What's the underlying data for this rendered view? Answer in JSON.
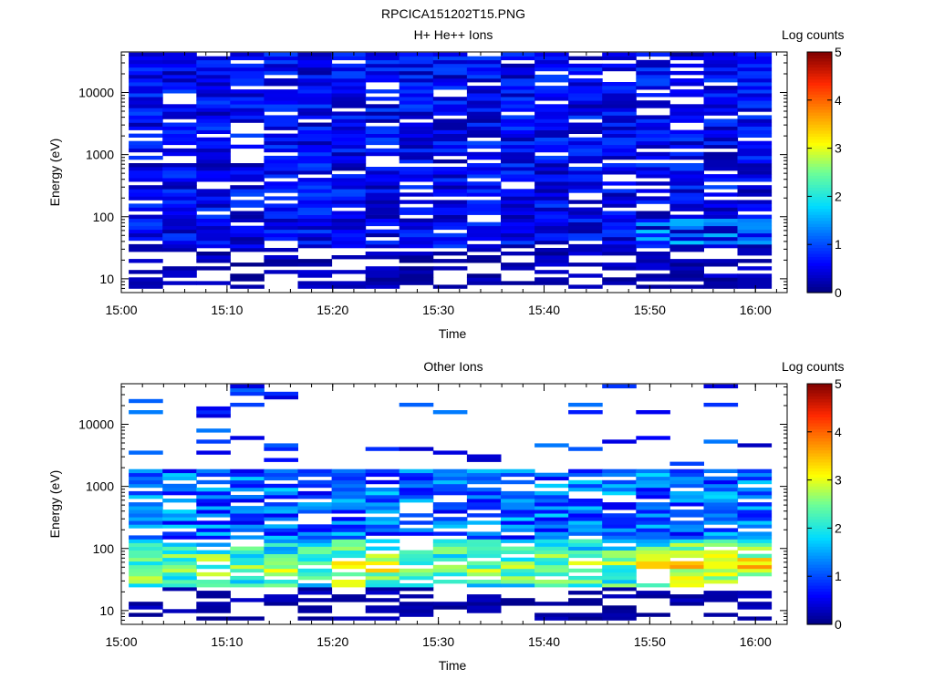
{
  "page_title": "RPCICA151202T15.PNG",
  "chart_data": [
    {
      "type": "heatmap",
      "title": "H+ He++ Ions",
      "xlabel": "Time",
      "ylabel": "Energy (eV)",
      "y_scale": "log",
      "ylim": [
        6,
        45000
      ],
      "xlim": [
        "15:00",
        "16:03"
      ],
      "x_ticks": [
        "15:00",
        "15:10",
        "15:20",
        "15:30",
        "15:40",
        "15:50",
        "16:00"
      ],
      "y_ticks": [
        "10",
        "100",
        "1000",
        "10000"
      ],
      "colorbar": {
        "label": "Log counts",
        "range": [
          0,
          5
        ],
        "ticks": [
          "0",
          "1",
          "2",
          "3",
          "4",
          "5"
        ]
      },
      "time_bins": [
        "15:00.7-15:04.0",
        "15:04.0-15:07.2",
        "15:07.2-15:10.4",
        "15:10.4-15:13.6",
        "15:13.6-15:16.8",
        "15:16.8-15:20.0",
        "15:20.0-15:23.2",
        "15:23.2-15:26.4",
        "15:26.4-15:29.6",
        "15:29.6-15:32.8",
        "15:32.8-15:36.0",
        "15:36.0-15:39.2",
        "15:39.2-15:42.4",
        "15:42.4-15:45.6",
        "15:45.6-15:48.8",
        "15:48.8-15:52.0",
        "15:52.0-15:55.2",
        "15:55.2-15:58.4",
        "15:58.4-16:01.6"
      ],
      "description": "Mostly low log counts (0.2-1.0) across 8 eV to 40 keV, elevated ~1.3-1.6 near 40-80 eV after 15:49"
    },
    {
      "type": "heatmap",
      "title": "Other Ions",
      "xlabel": "Time",
      "ylabel": "Energy (eV)",
      "y_scale": "log",
      "ylim": [
        6,
        45000
      ],
      "xlim": [
        "15:00",
        "16:03"
      ],
      "x_ticks": [
        "15:00",
        "15:10",
        "15:20",
        "15:30",
        "15:40",
        "15:50",
        "16:00"
      ],
      "y_ticks": [
        "10",
        "100",
        "1000",
        "10000"
      ],
      "colorbar": {
        "label": "Log counts",
        "range": [
          0,
          5
        ],
        "ticks": [
          "0",
          "1",
          "2",
          "3",
          "4",
          "5"
        ]
      },
      "description": "Sparse high-energy counts; band of 1-3.5 log counts between ~30 and ~900 eV, peak ~3.5 near 50 eV after 15:49"
    }
  ]
}
